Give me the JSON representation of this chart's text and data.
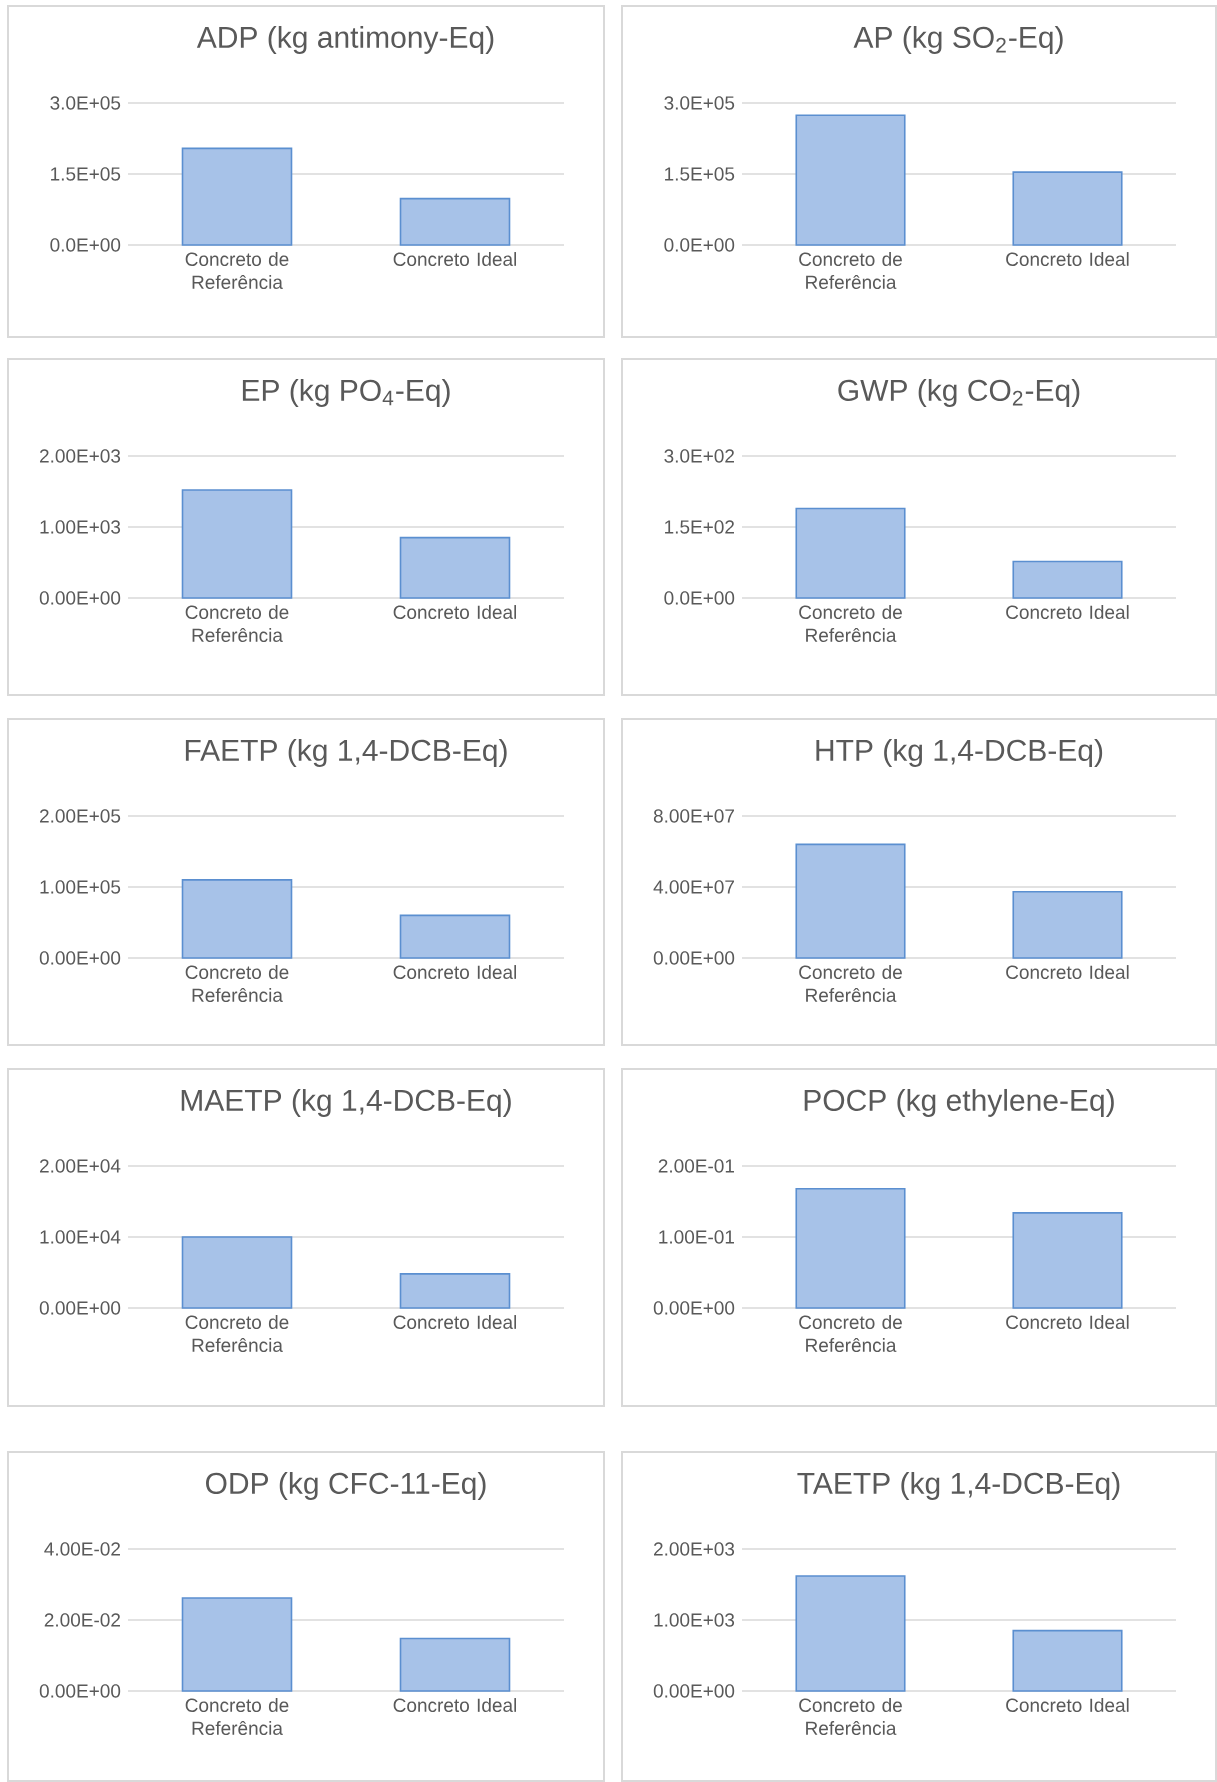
{
  "chart_data": [
    {
      "type": "bar",
      "title": "ADP (kg antimony-Eq)",
      "categories": [
        "Concreto de Referência",
        "Concreto Ideal"
      ],
      "values": [
        204000,
        98000
      ],
      "color": "#a7c2e8",
      "ylim": [
        0,
        300000
      ],
      "yticks": [
        {
          "value": 0,
          "label": "0.0E+00"
        },
        {
          "value": 150000,
          "label": "1.5E+05"
        },
        {
          "value": 300000,
          "label": "3.0E+05"
        }
      ],
      "grid": "y"
    },
    {
      "type": "bar",
      "title": "AP (kg SO$_{2}$-Eq)",
      "categories": [
        "Concreto de Referência",
        "Concreto Ideal"
      ],
      "values": [
        274000,
        154000
      ],
      "color": "#a7c2e8",
      "ylim": [
        0,
        300000
      ],
      "yticks": [
        {
          "value": 0,
          "label": "0.0E+00"
        },
        {
          "value": 150000,
          "label": "1.5E+05"
        },
        {
          "value": 300000,
          "label": "3.0E+05"
        }
      ],
      "grid": "y"
    },
    {
      "type": "bar",
      "title": "EP (kg PO$_{4}$-Eq)",
      "categories": [
        "Concreto de Referência",
        "Concreto Ideal"
      ],
      "values": [
        1520,
        850
      ],
      "color": "#a7c2e8",
      "ylim": [
        0,
        2000
      ],
      "yticks": [
        {
          "value": 0,
          "label": "0.00E+00"
        },
        {
          "value": 1000,
          "label": "1.00E+03"
        },
        {
          "value": 2000,
          "label": "2.00E+03"
        }
      ],
      "grid": "y"
    },
    {
      "type": "bar",
      "title": "GWP (kg CO$_{2}$-Eq)",
      "categories": [
        "Concreto de Referência",
        "Concreto Ideal"
      ],
      "values": [
        189,
        77
      ],
      "color": "#a7c2e8",
      "ylim": [
        0,
        300
      ],
      "yticks": [
        {
          "value": 0,
          "label": "0.0E+00"
        },
        {
          "value": 150,
          "label": "1.5E+02"
        },
        {
          "value": 300,
          "label": "3.0E+02"
        }
      ],
      "grid": "y"
    },
    {
      "type": "bar",
      "title": "FAETP (kg 1,4-DCB-Eq)",
      "categories": [
        "Concreto de Referência",
        "Concreto Ideal"
      ],
      "values": [
        110000,
        60000
      ],
      "color": "#a7c2e8",
      "ylim": [
        0,
        200000
      ],
      "yticks": [
        {
          "value": 0,
          "label": "0.00E+00"
        },
        {
          "value": 100000,
          "label": "1.00E+05"
        },
        {
          "value": 200000,
          "label": "2.00E+05"
        }
      ],
      "grid": "y"
    },
    {
      "type": "bar",
      "title": "HTP (kg 1,4-DCB-Eq)",
      "categories": [
        "Concreto de Referência",
        "Concreto Ideal"
      ],
      "values": [
        64000000,
        37300000
      ],
      "color": "#a7c2e8",
      "ylim": [
        0,
        80000000
      ],
      "yticks": [
        {
          "value": 0,
          "label": "0.00E+00"
        },
        {
          "value": 40000000,
          "label": "4.00E+07"
        },
        {
          "value": 80000000,
          "label": "8.00E+07"
        }
      ],
      "grid": "y"
    },
    {
      "type": "bar",
      "title": "MAETP (kg 1,4-DCB-Eq)",
      "categories": [
        "Concreto de Referência",
        "Concreto Ideal"
      ],
      "values": [
        10000,
        4800
      ],
      "color": "#a7c2e8",
      "ylim": [
        0,
        20000
      ],
      "yticks": [
        {
          "value": 0,
          "label": "0.00E+00"
        },
        {
          "value": 10000,
          "label": "1.00E+04"
        },
        {
          "value": 20000,
          "label": "2.00E+04"
        }
      ],
      "grid": "y"
    },
    {
      "type": "bar",
      "title": "POCP (kg ethylene-Eq)",
      "categories": [
        "Concreto de Referência",
        "Concreto Ideal"
      ],
      "values": [
        0.168,
        0.134
      ],
      "color": "#a7c2e8",
      "ylim": [
        0,
        0.2
      ],
      "yticks": [
        {
          "value": 0,
          "label": "0.00E+00"
        },
        {
          "value": 0.1,
          "label": "1.00E-01"
        },
        {
          "value": 0.2,
          "label": "2.00E-01"
        }
      ],
      "grid": "y"
    },
    {
      "type": "bar",
      "title": "ODP (kg CFC-11-Eq)",
      "categories": [
        "Concreto de Referência",
        "Concreto Ideal"
      ],
      "values": [
        0.0262,
        0.0148
      ],
      "color": "#a7c2e8",
      "ylim": [
        0,
        0.04
      ],
      "yticks": [
        {
          "value": 0,
          "label": "0.00E+00"
        },
        {
          "value": 0.02,
          "label": "2.00E-02"
        },
        {
          "value": 0.04,
          "label": "4.00E-02"
        }
      ],
      "grid": "y"
    },
    {
      "type": "bar",
      "title": "TAETP (kg 1,4-DCB-Eq)",
      "categories": [
        "Concreto de Referência",
        "Concreto Ideal"
      ],
      "values": [
        1620,
        850
      ],
      "color": "#a7c2e8",
      "ylim": [
        0,
        2000
      ],
      "yticks": [
        {
          "value": 0,
          "label": "0.00E+00"
        },
        {
          "value": 1000,
          "label": "1.00E+03"
        },
        {
          "value": 2000,
          "label": "2.00E+03"
        }
      ],
      "grid": "y"
    }
  ]
}
